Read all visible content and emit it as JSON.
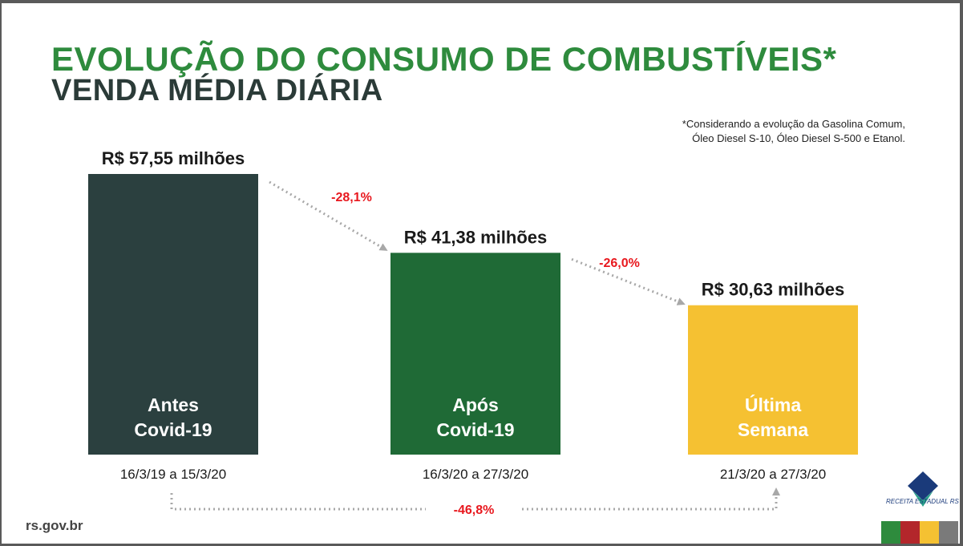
{
  "chart_data": {
    "type": "bar",
    "title": "EVOLUÇÃO DO CONSUMO DE COMBUSTÍVEIS*",
    "subtitle": "VENDA MÉDIA DIÁRIA",
    "unit": "R$ milhões",
    "bars": [
      {
        "category_line1": "Antes",
        "category_line2": "Covid-19",
        "value": 57.55,
        "value_label": "R$ 57,55 milhões",
        "period": "16/3/19 a 15/3/20",
        "color": "#2b403f"
      },
      {
        "category_line1": "Após",
        "category_line2": "Covid-19",
        "value": 41.38,
        "value_label": "R$ 41,38 milhões",
        "period": "16/3/20 a 27/3/20",
        "color": "#1f6a36"
      },
      {
        "category_line1": "Última",
        "category_line2": "Semana",
        "value": 30.63,
        "value_label": "R$ 30,63 milhões",
        "period": "21/3/20 a 27/3/20",
        "color": "#f5c132"
      }
    ],
    "changes": [
      {
        "from": 0,
        "to": 1,
        "label": "-28,1%"
      },
      {
        "from": 1,
        "to": 2,
        "label": "-26,0%"
      },
      {
        "from": 0,
        "to": 2,
        "label": "-46,8%"
      }
    ],
    "footnote_line1": "*Considerando a evolução da Gasolina Comum,",
    "footnote_line2": "Óleo Diesel S-10, Óleo Diesel S-500 e Etanol.",
    "ylim": [
      0,
      60
    ]
  },
  "footer": {
    "site": "rs.gov.br",
    "logo_text": "RECEITA ESTADUAL RS",
    "stripe_colors": [
      "#2e8b3d",
      "#b3262b",
      "#f5c132",
      "#7a7a7a"
    ]
  },
  "logo_colors": {
    "diamond_top": "#1a3a7a",
    "diamond_bottom": "#2aa08a"
  }
}
